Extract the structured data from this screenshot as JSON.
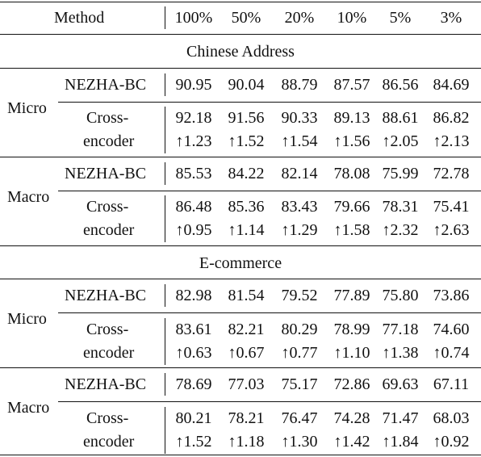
{
  "table": {
    "method_header": "Method",
    "columns": [
      "100%",
      "50%",
      "20%",
      "10%",
      "5%",
      "3%"
    ],
    "sections": [
      {
        "title": "Chinese Address",
        "groups": [
          {
            "label": "Micro",
            "baseline": {
              "name": "NEZHA-BC",
              "values": [
                "90.95",
                "90.04",
                "88.79",
                "87.57",
                "86.56",
                "84.69"
              ]
            },
            "cross": {
              "name_line1": "Cross-",
              "name_line2": "encoder",
              "values": [
                "92.18",
                "91.56",
                "90.33",
                "89.13",
                "88.61",
                "86.82"
              ],
              "gains": [
                "↑1.23",
                "↑1.52",
                "↑1.54",
                "↑1.56",
                "↑2.05",
                "↑2.13"
              ]
            }
          },
          {
            "label": "Macro",
            "baseline": {
              "name": "NEZHA-BC",
              "values": [
                "85.53",
                "84.22",
                "82.14",
                "78.08",
                "75.99",
                "72.78"
              ]
            },
            "cross": {
              "name_line1": "Cross-",
              "name_line2": "encoder",
              "values": [
                "86.48",
                "85.36",
                "83.43",
                "79.66",
                "78.31",
                "75.41"
              ],
              "gains": [
                "↑0.95",
                "↑1.14",
                "↑1.29",
                "↑1.58",
                "↑2.32",
                "↑2.63"
              ]
            }
          }
        ]
      },
      {
        "title": "E-commerce",
        "groups": [
          {
            "label": "Micro",
            "baseline": {
              "name": "NEZHA-BC",
              "values": [
                "82.98",
                "81.54",
                "79.52",
                "77.89",
                "75.80",
                "73.86"
              ]
            },
            "cross": {
              "name_line1": "Cross-",
              "name_line2": "encoder",
              "values": [
                "83.61",
                "82.21",
                "80.29",
                "78.99",
                "77.18",
                "74.60"
              ],
              "gains": [
                "↑0.63",
                "↑0.67",
                "↑0.77",
                "↑1.10",
                "↑1.38",
                "↑0.74"
              ]
            }
          },
          {
            "label": "Macro",
            "baseline": {
              "name": "NEZHA-BC",
              "values": [
                "78.69",
                "77.03",
                "75.17",
                "72.86",
                "69.63",
                "67.11"
              ]
            },
            "cross": {
              "name_line1": "Cross-",
              "name_line2": "encoder",
              "values": [
                "80.21",
                "78.21",
                "76.47",
                "74.28",
                "71.47",
                "68.03"
              ],
              "gains": [
                "↑1.52",
                "↑1.18",
                "↑1.30",
                "↑1.42",
                "↑1.84",
                "↑0.92"
              ]
            }
          }
        ]
      }
    ]
  }
}
